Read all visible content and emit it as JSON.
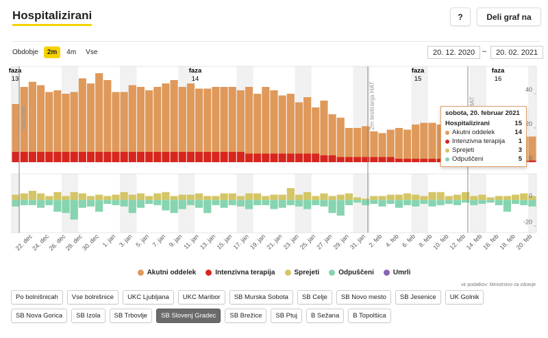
{
  "header": {
    "title": "Hospitalizirani",
    "help": "?",
    "share": "Deli graf na"
  },
  "period": {
    "label": "Obdobje",
    "options": [
      "2m",
      "4m",
      "Vse"
    ],
    "selected": "2m"
  },
  "date_range": {
    "from": "20. 12. 2020",
    "separator": "–",
    "to": "20. 02. 2021"
  },
  "chart_data": [
    {
      "type": "bar",
      "stacked": true,
      "series": [
        {
          "name": "Akutni oddelek",
          "color": "#df995b",
          "values": [
            28,
            38,
            41,
            39,
            35,
            36,
            34,
            35,
            43,
            40,
            46,
            42,
            35,
            35,
            39,
            38,
            36,
            38,
            40,
            42,
            38,
            40,
            37,
            37,
            38,
            38,
            38,
            36,
            39,
            35,
            39,
            37,
            34,
            35,
            30,
            33,
            27,
            32,
            24,
            23,
            17,
            17,
            18,
            15,
            14,
            16,
            18,
            17,
            20,
            21,
            21,
            20,
            20,
            19,
            18,
            18,
            17,
            17,
            16,
            16,
            15,
            14,
            14
          ]
        },
        {
          "name": "Intenzivna terapija",
          "color": "#d7261e",
          "values": [
            6,
            6,
            6,
            6,
            6,
            6,
            6,
            6,
            6,
            6,
            6,
            6,
            6,
            6,
            6,
            6,
            6,
            6,
            6,
            6,
            6,
            6,
            6,
            6,
            6,
            6,
            6,
            6,
            5,
            5,
            5,
            5,
            5,
            5,
            5,
            5,
            5,
            4,
            4,
            3,
            3,
            3,
            3,
            3,
            3,
            3,
            2,
            2,
            2,
            2,
            2,
            2,
            2,
            2,
            2,
            2,
            2,
            1,
            1,
            1,
            1,
            1,
            1
          ]
        }
      ],
      "ylim": [
        0,
        56
      ],
      "yticks": [
        0,
        20,
        40
      ],
      "phases": [
        {
          "label": "faza",
          "number": 13
        },
        {
          "label": "faza",
          "number": 14
        },
        {
          "label": "faza",
          "number": 15
        },
        {
          "label": "faza",
          "number": 16
        }
      ],
      "notes": [
        "nski testi",
        "2m testiranja HAT",
        "stiranja HAT"
      ]
    },
    {
      "type": "bar",
      "stacked": false,
      "categories": [
        null,
        null,
        "22. dec",
        null,
        "24. dec",
        null,
        "26. dec",
        null,
        "28. dec",
        null,
        "30. dec",
        null,
        "1. jan",
        null,
        "3. jan",
        null,
        "5. jan",
        null,
        "7. jan",
        null,
        "9. jan",
        null,
        "11. jan",
        null,
        "13. jan",
        null,
        "15. jan",
        null,
        "17. jan",
        null,
        "19. jan",
        null,
        "21. jan",
        null,
        "23. jan",
        null,
        "25. jan",
        null,
        "27. jan",
        null,
        "29. jan",
        null,
        "31. jan",
        null,
        "2. feb",
        null,
        "4. feb",
        null,
        "6. feb",
        null,
        "8. feb",
        null,
        "10. feb",
        null,
        "12. feb",
        null,
        "14. feb",
        null,
        "16. feb",
        null,
        "18. feb",
        null,
        "20. feb"
      ],
      "series": [
        {
          "name": "Sprejeti",
          "color": "#d4c566",
          "values": [
            4,
            5,
            7,
            5,
            3,
            6,
            3,
            6,
            5,
            3,
            4,
            3,
            4,
            6,
            4,
            5,
            3,
            5,
            6,
            3,
            4,
            4,
            5,
            3,
            3,
            5,
            5,
            3,
            5,
            5,
            3,
            4,
            4,
            9,
            4,
            6,
            3,
            5,
            3,
            4,
            5,
            2,
            1,
            3,
            3,
            4,
            4,
            5,
            4,
            3,
            6,
            6,
            3,
            4,
            6,
            3,
            4,
            2,
            3,
            3,
            4,
            5,
            3
          ]
        },
        {
          "name": "Odpuščeni",
          "color": "#86d4b0",
          "values": [
            -5,
            -4,
            -4,
            -6,
            -4,
            -9,
            -10,
            -15,
            -6,
            -5,
            -9,
            -3,
            -4,
            -5,
            -10,
            -6,
            -3,
            -4,
            -8,
            -10,
            -7,
            -4,
            -6,
            -10,
            -4,
            -6,
            -4,
            -5,
            -7,
            -4,
            -4,
            -7,
            -6,
            -4,
            -5,
            -7,
            -4,
            -5,
            -10,
            -12,
            -4,
            -2,
            -4,
            -3,
            -5,
            -3,
            -6,
            -4,
            -5,
            -3,
            -5,
            -4,
            -3,
            -4,
            -2,
            -4,
            -3,
            -2,
            -4,
            -9,
            -3,
            -4,
            -5
          ]
        },
        {
          "name": "Umrli",
          "color": "#8a64b5",
          "values": [
            0,
            0,
            0,
            0,
            0,
            0,
            0,
            0,
            0,
            0,
            0,
            0,
            0,
            0,
            0,
            0,
            0,
            0,
            0,
            0,
            0,
            0,
            0,
            0,
            0,
            0,
            0,
            0,
            0,
            0,
            0,
            0,
            0,
            0,
            0,
            0,
            0,
            0,
            0,
            0,
            0,
            0,
            0,
            0,
            0,
            0,
            0,
            0,
            0,
            0,
            0,
            0,
            0,
            0,
            0,
            0,
            0,
            0,
            0,
            0,
            0,
            0,
            0
          ]
        }
      ],
      "ylim": [
        -25,
        20
      ],
      "yticks": [
        0,
        -20
      ]
    }
  ],
  "tooltip": {
    "date": "sobota, 20. februar 2021",
    "total": {
      "name": "Hospitalizirani",
      "value": 15
    },
    "rows": [
      {
        "name": "Akutni oddelek",
        "value": 14,
        "color": "#df995b"
      },
      {
        "name": "Intenzivna terapija",
        "value": 1,
        "color": "#d7261e"
      },
      {
        "name": "Sprejeti",
        "value": 3,
        "color": "#d4c566"
      },
      {
        "name": "Odpuščeni",
        "value": 5,
        "color": "#86d4b0"
      }
    ]
  },
  "source": "vir podatkov: Ministrstvo za zdravje",
  "hospitals": {
    "options": [
      "Po bolnišnicah",
      "Vse bolnišnice",
      "UKC Ljubljana",
      "UKC Maribor",
      "SB Murska Sobota",
      "SB Celje",
      "SB Novo mesto",
      "SB Jesenice",
      "UK Golnik",
      "SB Nova Gorica",
      "SB Izola",
      "SB Trbovlje",
      "SB Slovenj Gradec",
      "SB Brežice",
      "SB Ptuj",
      "B Sežana",
      "B Topolšica"
    ],
    "selected": "SB Slovenj Gradec"
  }
}
